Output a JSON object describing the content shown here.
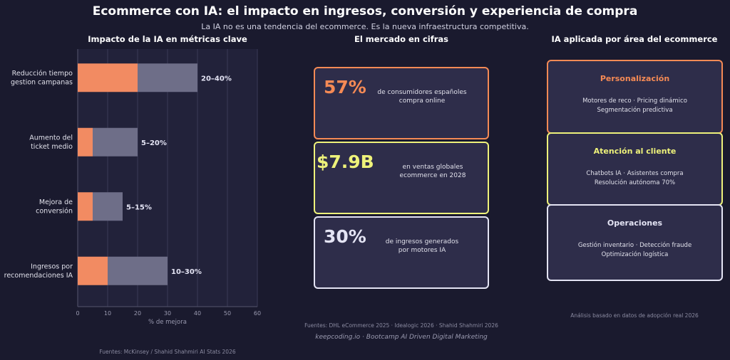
{
  "header": {
    "title": "Ecommerce con IA: el impacto en ingresos, conversión y experiencia de compra",
    "subtitle": "La IA no es una tendencia del ecommerce. Es la nueva infraestructura competitiva."
  },
  "chart_data": {
    "type": "bar",
    "orientation": "horizontal",
    "stacked": true,
    "title": "Impacto de la IA en métricas clave",
    "xlabel": "% de mejora",
    "xlim": [
      0,
      60
    ],
    "xticks": [
      0,
      10,
      20,
      30,
      40,
      50,
      60
    ],
    "grid": true,
    "categories": [
      "Reducción tiempo\ngestion campanas",
      "Aumento del\nticket medio",
      "Mejora de\nconversión",
      "Ingresos por\nrecomendaciones IA"
    ],
    "series": [
      {
        "values": [
          20,
          5,
          5,
          10
        ],
        "color": "#f28b62"
      },
      {
        "values": [
          20,
          15,
          10,
          20
        ],
        "color": "#6e6e88"
      }
    ],
    "data_labels": [
      "20–40%",
      "5–20%",
      "5–15%",
      "10–30%"
    ],
    "footnote": "Fuentes: McKinsey / Shahid Shahmiri AI Stats 2026"
  },
  "market": {
    "title": "El mercado en cifras",
    "cards": [
      {
        "value": "57%",
        "desc": "de consumidores españoles\ncompra online",
        "color": "#f58a55"
      },
      {
        "value": "$7.9B",
        "desc": "en ventas globales\necommerce en 2028",
        "color": "#eef27a"
      },
      {
        "value": "30%",
        "desc": "de ingresos generados\npor motores IA",
        "color": "#e4e4f4"
      }
    ],
    "footnote": "Fuentes: DHL eCommerce 2025 · Idealogic 2026 · Shahid Shahmiri 2026"
  },
  "areas": {
    "title": "IA aplicada por área del ecommerce",
    "cards": [
      {
        "title": "Personalización",
        "desc": "Motores de reco · Pricing dinámico\nSegmentación predictiva",
        "color": "#f58a55"
      },
      {
        "title": "Atención al cliente",
        "desc": "Chatbots IA · Asistentes compra\nResolución autónoma 70%",
        "color": "#eef27a"
      },
      {
        "title": "Operaciones",
        "desc": "Gestión inventario · Detección fraude\nOptimización logística",
        "color": "#e4e4f4"
      }
    ],
    "footnote": "Análisis basado en datos de adopción real 2026"
  },
  "credit": "keepcoding.io  ·  Bootcamp AI Driven Digital Marketing"
}
